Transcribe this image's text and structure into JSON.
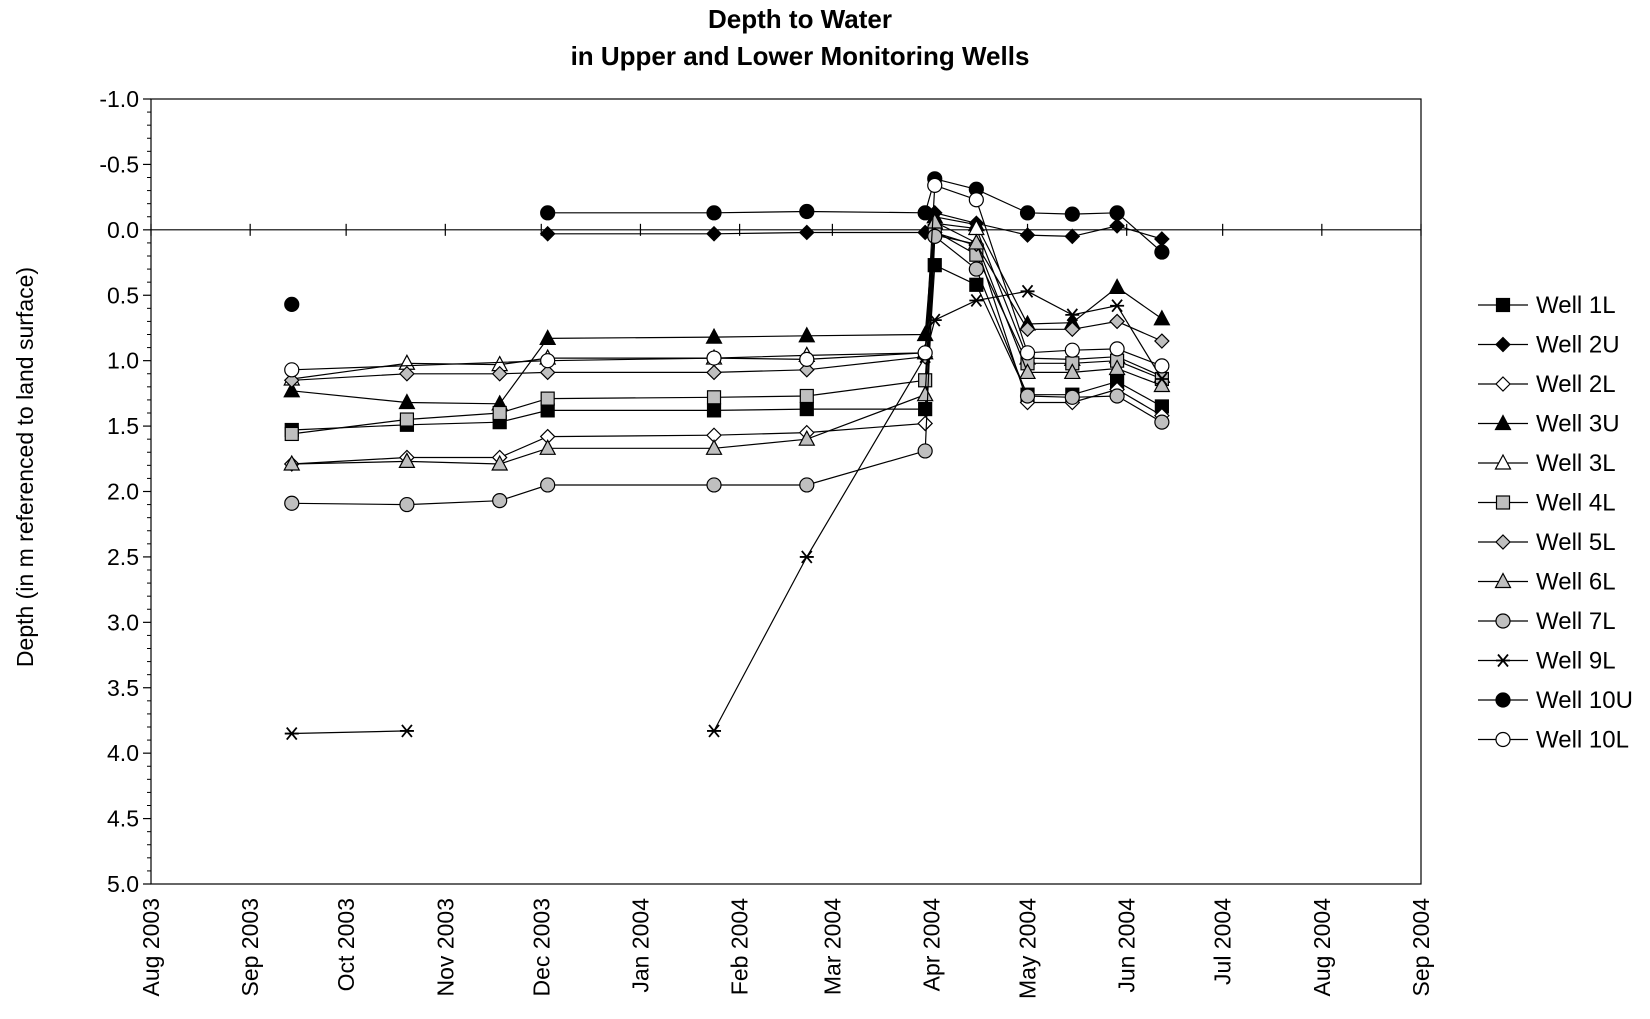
{
  "chart_data": {
    "type": "line",
    "title": "Depth to Water",
    "subtitle": "in Upper and Lower Monitoring Wells",
    "ylabel": "Depth (in m referenced to land surface)",
    "xlabel": "",
    "ylim": [
      -1.0,
      5.0
    ],
    "y_inverted": true,
    "y_ticks": [
      "-1.0",
      "-0.5",
      "0.0",
      "0.5",
      "1.0",
      "1.5",
      "2.0",
      "2.5",
      "3.0",
      "3.5",
      "4.0",
      "4.5",
      "5.0"
    ],
    "x_ticks": [
      "Aug 2003",
      "Sep 2003",
      "Oct 2003",
      "Nov 2003",
      "Dec 2003",
      "Jan 2004",
      "Feb 2004",
      "Mar 2004",
      "Apr 2004",
      "May 2004",
      "Jun 2004",
      "Jul 2004",
      "Aug 2004",
      "Sep 2004"
    ],
    "grid": false,
    "legend_position": "right",
    "series": [
      {
        "name": "Well 1L",
        "marker": "square",
        "fill": "#000000",
        "points": [
          [
            "2003-09-14",
            1.53
          ],
          [
            "2003-10-20",
            1.49
          ],
          [
            "2003-11-18",
            1.47
          ],
          [
            "2003-12-03",
            1.38
          ],
          [
            "2004-01-24",
            1.38
          ],
          [
            "2004-02-22",
            1.37
          ],
          [
            "2004-03-30",
            1.37
          ],
          [
            "2004-04-02",
            0.27
          ],
          [
            "2004-04-15",
            0.42
          ],
          [
            "2004-05-01",
            1.26
          ],
          [
            "2004-05-15",
            1.26
          ],
          [
            "2004-05-29",
            1.16
          ],
          [
            "2004-06-12",
            1.35
          ]
        ]
      },
      {
        "name": "Well 2U",
        "marker": "diamond",
        "fill": "#000000",
        "points": [
          [
            "2003-12-03",
            0.03
          ],
          [
            "2004-01-24",
            0.03
          ],
          [
            "2004-02-22",
            0.02
          ],
          [
            "2004-03-30",
            0.02
          ],
          [
            "2004-04-02",
            -0.13
          ],
          [
            "2004-04-15",
            -0.05
          ],
          [
            "2004-05-01",
            0.04
          ],
          [
            "2004-05-15",
            0.05
          ],
          [
            "2004-05-29",
            -0.03
          ],
          [
            "2004-06-12",
            0.07
          ]
        ]
      },
      {
        "name": "Well 2L",
        "marker": "diamond",
        "fill": "#ffffff",
        "points": [
          [
            "2003-09-14",
            1.79
          ],
          [
            "2003-10-20",
            1.74
          ],
          [
            "2003-11-18",
            1.74
          ],
          [
            "2003-12-03",
            1.58
          ],
          [
            "2004-01-24",
            1.57
          ],
          [
            "2004-02-22",
            1.55
          ],
          [
            "2004-03-30",
            1.48
          ],
          [
            "2004-04-02",
            0.02
          ],
          [
            "2004-04-15",
            0.12
          ],
          [
            "2004-05-01",
            1.32
          ],
          [
            "2004-05-15",
            1.32
          ],
          [
            "2004-05-29",
            1.22
          ],
          [
            "2004-06-12",
            1.42
          ]
        ]
      },
      {
        "name": "Well 3U",
        "marker": "triangle",
        "fill": "#000000",
        "points": [
          [
            "2003-09-14",
            1.23
          ],
          [
            "2003-10-20",
            1.32
          ],
          [
            "2003-11-18",
            1.33
          ],
          [
            "2003-12-03",
            0.83
          ],
          [
            "2004-01-24",
            0.82
          ],
          [
            "2004-02-22",
            0.81
          ],
          [
            "2004-03-30",
            0.8
          ],
          [
            "2004-04-02",
            -0.1
          ],
          [
            "2004-04-15",
            -0.04
          ],
          [
            "2004-05-01",
            0.72
          ],
          [
            "2004-05-15",
            0.71
          ],
          [
            "2004-05-29",
            0.44
          ],
          [
            "2004-06-12",
            0.68
          ]
        ]
      },
      {
        "name": "Well 3L",
        "marker": "triangle",
        "fill": "#ffffff",
        "points": [
          [
            "2003-09-14",
            1.14
          ],
          [
            "2003-10-20",
            1.02
          ],
          [
            "2003-11-18",
            1.03
          ],
          [
            "2003-12-03",
            0.98
          ],
          [
            "2004-01-24",
            0.98
          ],
          [
            "2004-02-22",
            0.96
          ],
          [
            "2004-03-30",
            0.94
          ],
          [
            "2004-04-02",
            -0.05
          ],
          [
            "2004-04-15",
            -0.01
          ],
          [
            "2004-05-01",
            0.98
          ],
          [
            "2004-05-15",
            0.99
          ],
          [
            "2004-05-29",
            0.97
          ],
          [
            "2004-06-12",
            1.12
          ]
        ]
      },
      {
        "name": "Well 4L",
        "marker": "square",
        "fill": "#bfbfbf",
        "points": [
          [
            "2003-09-14",
            1.56
          ],
          [
            "2003-10-20",
            1.45
          ],
          [
            "2003-11-18",
            1.4
          ],
          [
            "2003-12-03",
            1.29
          ],
          [
            "2004-01-24",
            1.28
          ],
          [
            "2004-02-22",
            1.27
          ],
          [
            "2004-03-30",
            1.15
          ],
          [
            "2004-04-02",
            0.01
          ],
          [
            "2004-04-15",
            0.19
          ],
          [
            "2004-05-01",
            1.02
          ],
          [
            "2004-05-15",
            1.02
          ],
          [
            "2004-05-29",
            1.0
          ],
          [
            "2004-06-12",
            1.14
          ]
        ]
      },
      {
        "name": "Well 5L",
        "marker": "diamond",
        "fill": "#bfbfbf",
        "points": [
          [
            "2003-09-14",
            1.15
          ],
          [
            "2003-10-20",
            1.1
          ],
          [
            "2003-11-18",
            1.1
          ],
          [
            "2003-12-03",
            1.09
          ],
          [
            "2004-01-24",
            1.09
          ],
          [
            "2004-02-22",
            1.07
          ],
          [
            "2004-03-30",
            0.97
          ],
          [
            "2004-04-02",
            0.04
          ],
          [
            "2004-04-15",
            0.11
          ],
          [
            "2004-05-01",
            0.76
          ],
          [
            "2004-05-15",
            0.76
          ],
          [
            "2004-05-29",
            0.7
          ],
          [
            "2004-06-12",
            0.85
          ]
        ]
      },
      {
        "name": "Well 6L",
        "marker": "triangle",
        "fill": "#bfbfbf",
        "points": [
          [
            "2003-09-14",
            1.79
          ],
          [
            "2003-10-20",
            1.77
          ],
          [
            "2003-11-18",
            1.79
          ],
          [
            "2003-12-03",
            1.67
          ],
          [
            "2004-01-24",
            1.67
          ],
          [
            "2004-02-22",
            1.6
          ],
          [
            "2004-03-30",
            1.26
          ],
          [
            "2004-04-02",
            -0.06
          ],
          [
            "2004-04-15",
            0.1
          ],
          [
            "2004-05-01",
            1.09
          ],
          [
            "2004-05-15",
            1.09
          ],
          [
            "2004-05-29",
            1.06
          ],
          [
            "2004-06-12",
            1.19
          ]
        ]
      },
      {
        "name": "Well 7L",
        "marker": "circle",
        "fill": "#bfbfbf",
        "points": [
          [
            "2003-09-14",
            2.09
          ],
          [
            "2003-10-20",
            2.1
          ],
          [
            "2003-11-18",
            2.07
          ],
          [
            "2003-12-03",
            1.95
          ],
          [
            "2004-01-24",
            1.95
          ],
          [
            "2004-02-22",
            1.95
          ],
          [
            "2004-03-30",
            1.69
          ],
          [
            "2004-04-02",
            0.05
          ],
          [
            "2004-04-15",
            0.3
          ],
          [
            "2004-05-01",
            1.27
          ],
          [
            "2004-05-15",
            1.28
          ],
          [
            "2004-05-29",
            1.27
          ],
          [
            "2004-06-12",
            1.47
          ]
        ]
      },
      {
        "name": "Well 9L",
        "marker": "star",
        "fill": "#000000",
        "segments": [
          [
            [
              "2003-09-14",
              3.85
            ],
            [
              "2003-10-20",
              3.83
            ]
          ],
          [
            [
              "2004-01-24",
              3.83
            ],
            [
              "2004-02-22",
              2.5
            ],
            [
              "2004-03-30",
              0.97
            ],
            [
              "2004-04-02",
              0.69
            ],
            [
              "2004-04-15",
              0.54
            ],
            [
              "2004-05-01",
              0.47
            ],
            [
              "2004-05-15",
              0.65
            ],
            [
              "2004-05-29",
              0.58
            ],
            [
              "2004-06-12",
              1.14
            ]
          ]
        ]
      },
      {
        "name": "Well 10U",
        "marker": "circle",
        "fill": "#000000",
        "points": [
          [
            "2003-09-14",
            0.57
          ],
          [
            "2003-12-03",
            -0.13
          ],
          [
            "2004-01-24",
            -0.13
          ],
          [
            "2004-02-22",
            -0.14
          ],
          [
            "2004-03-30",
            -0.13
          ],
          [
            "2004-04-02",
            -0.39
          ],
          [
            "2004-04-15",
            -0.31
          ],
          [
            "2004-05-01",
            -0.13
          ],
          [
            "2004-05-15",
            -0.12
          ],
          [
            "2004-05-29",
            -0.13
          ],
          [
            "2004-06-12",
            0.17
          ]
        ],
        "line_from_index": 1
      },
      {
        "name": "Well 10L",
        "marker": "circle",
        "fill": "#ffffff",
        "points": [
          [
            "2003-09-14",
            1.07
          ],
          [
            "2003-12-03",
            1.0
          ],
          [
            "2004-01-24",
            0.98
          ],
          [
            "2004-02-22",
            0.99
          ],
          [
            "2004-03-30",
            0.94
          ],
          [
            "2004-04-02",
            -0.34
          ],
          [
            "2004-04-15",
            -0.23
          ],
          [
            "2004-05-01",
            0.94
          ],
          [
            "2004-05-15",
            0.92
          ],
          [
            "2004-05-29",
            0.91
          ],
          [
            "2004-06-12",
            1.04
          ]
        ]
      }
    ]
  }
}
